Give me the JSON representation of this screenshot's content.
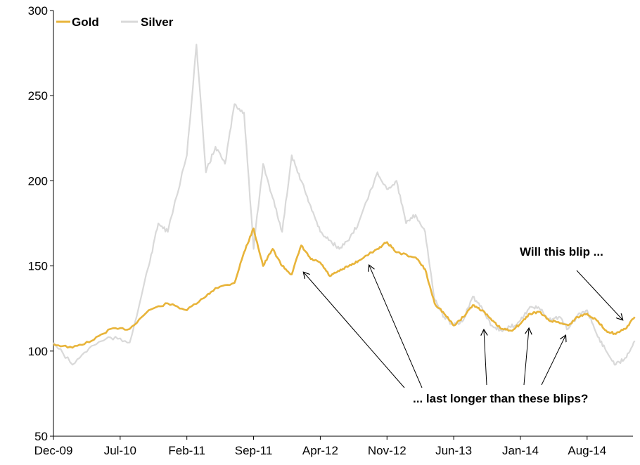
{
  "chart_data": {
    "type": "line",
    "title": "",
    "xlabel": "",
    "ylabel": "",
    "ylim": [
      50,
      300
    ],
    "yticks": [
      50,
      100,
      150,
      200,
      250,
      300
    ],
    "xticks": [
      "Dec-09",
      "Jul-10",
      "Feb-11",
      "Sep-11",
      "Apr-12",
      "Nov-12",
      "Jun-13",
      "Jan-14",
      "Aug-14"
    ],
    "x_range_months": "Dec-09 to Jan-15",
    "grid": false,
    "legend": "top-left",
    "series": [
      {
        "name": "Gold",
        "color": "#E8B43A",
        "x": [
          "Dec-09",
          "Feb-10",
          "Apr-10",
          "Jun-10",
          "Aug-10",
          "Oct-10",
          "Dec-10",
          "Feb-11",
          "Apr-11",
          "May-11",
          "Jul-11",
          "Aug-11",
          "Sep-11",
          "Oct-11",
          "Nov-11",
          "Dec-11",
          "Jan-12",
          "Feb-12",
          "Mar-12",
          "Apr-12",
          "May-12",
          "Jun-12",
          "Jul-12",
          "Aug-12",
          "Oct-12",
          "Nov-12",
          "Dec-12",
          "Feb-13",
          "Mar-13",
          "Apr-13",
          "May-13",
          "Jun-13",
          "Jul-13",
          "Aug-13",
          "Sep-13",
          "Oct-13",
          "Nov-13",
          "Dec-13",
          "Jan-14",
          "Feb-14",
          "Mar-14",
          "Apr-14",
          "May-14",
          "Jun-14",
          "Jul-14",
          "Aug-14",
          "Sep-14",
          "Oct-14",
          "Nov-14",
          "Dec-14",
          "Jan-15"
        ],
        "values": [
          104,
          102,
          106,
          113,
          113,
          124,
          128,
          124,
          132,
          137,
          140,
          158,
          172,
          150,
          160,
          150,
          145,
          162,
          154,
          152,
          144,
          147,
          150,
          153,
          160,
          164,
          158,
          155,
          148,
          128,
          122,
          115,
          120,
          127,
          124,
          118,
          113,
          112,
          116,
          122,
          123,
          118,
          117,
          115,
          120,
          122,
          118,
          112,
          110,
          113,
          120
        ]
      },
      {
        "name": "Silver",
        "color": "#D9D9D9",
        "x": [
          "Dec-09",
          "Feb-10",
          "Apr-10",
          "Jun-10",
          "Aug-10",
          "Oct-10",
          "Nov-10",
          "Dec-10",
          "Feb-11",
          "Mar-11",
          "Apr-11",
          "May-11",
          "Jun-11",
          "Jul-11",
          "Aug-11",
          "Sep-11",
          "Oct-11",
          "Nov-11",
          "Dec-11",
          "Jan-12",
          "Feb-12",
          "Mar-12",
          "Apr-12",
          "May-12",
          "Jun-12",
          "Jul-12",
          "Aug-12",
          "Oct-12",
          "Nov-12",
          "Dec-12",
          "Jan-13",
          "Feb-13",
          "Mar-13",
          "Apr-13",
          "May-13",
          "Jun-13",
          "Jul-13",
          "Aug-13",
          "Sep-13",
          "Oct-13",
          "Nov-13",
          "Dec-13",
          "Jan-14",
          "Feb-14",
          "Mar-14",
          "Apr-14",
          "May-14",
          "Jun-14",
          "Jul-14",
          "Aug-14",
          "Sep-14",
          "Oct-14",
          "Nov-14",
          "Dec-14",
          "Jan-15"
        ],
        "values": [
          105,
          92,
          103,
          108,
          105,
          150,
          175,
          170,
          215,
          280,
          205,
          220,
          210,
          245,
          240,
          160,
          210,
          190,
          170,
          215,
          200,
          185,
          170,
          165,
          160,
          165,
          175,
          205,
          195,
          200,
          175,
          180,
          170,
          130,
          120,
          115,
          118,
          132,
          125,
          115,
          112,
          114,
          118,
          126,
          125,
          118,
          120,
          113,
          121,
          124,
          110,
          100,
          92,
          96,
          106
        ]
      }
    ],
    "annotations": [
      "Will this blip ...",
      "... last longer than these blips?"
    ]
  }
}
